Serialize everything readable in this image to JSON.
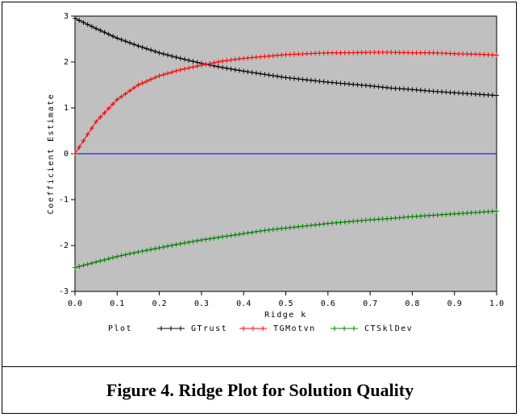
{
  "caption": "Figure 4.  Ridge Plot for Solution Quality",
  "chart_data": {
    "type": "line",
    "xlabel": "Ridge k",
    "ylabel": "Coefficient Estimate",
    "xlim": [
      0.0,
      1.0
    ],
    "ylim": [
      -3,
      3
    ],
    "x_ticks": [
      "0.0",
      "0.1",
      "0.2",
      "0.3",
      "0.4",
      "0.5",
      "0.6",
      "0.7",
      "0.8",
      "0.9",
      "1.0"
    ],
    "y_ticks": [
      "3",
      "2",
      "1",
      "0",
      "-1",
      "-2",
      "-3"
    ],
    "background": "#c0c0c0",
    "reference_line": {
      "y": 0,
      "color": "#0000ff"
    },
    "legend": {
      "title": "Plot",
      "placement": "bottom"
    },
    "x": [
      0.0,
      0.05,
      0.1,
      0.15,
      0.2,
      0.25,
      0.3,
      0.35,
      0.4,
      0.45,
      0.5,
      0.55,
      0.6,
      0.65,
      0.7,
      0.75,
      0.8,
      0.85,
      0.9,
      0.95,
      1.0
    ],
    "series": [
      {
        "name": "GTrust",
        "color": "#000000",
        "values": [
          2.95,
          2.73,
          2.52,
          2.35,
          2.2,
          2.08,
          1.97,
          1.88,
          1.8,
          1.73,
          1.66,
          1.61,
          1.56,
          1.52,
          1.48,
          1.43,
          1.4,
          1.36,
          1.33,
          1.3,
          1.27
        ]
      },
      {
        "name": "TGMotvn",
        "color": "#ff0000",
        "values": [
          0.0,
          0.7,
          1.18,
          1.5,
          1.7,
          1.83,
          1.93,
          2.02,
          2.08,
          2.12,
          2.16,
          2.18,
          2.2,
          2.2,
          2.21,
          2.21,
          2.2,
          2.2,
          2.18,
          2.17,
          2.15
        ]
      },
      {
        "name": "CTSklDev",
        "color": "#008000",
        "values": [
          -2.48,
          -2.36,
          -2.24,
          -2.14,
          -2.05,
          -1.96,
          -1.88,
          -1.81,
          -1.74,
          -1.67,
          -1.62,
          -1.57,
          -1.52,
          -1.48,
          -1.44,
          -1.41,
          -1.37,
          -1.34,
          -1.31,
          -1.28,
          -1.25
        ]
      }
    ]
  }
}
